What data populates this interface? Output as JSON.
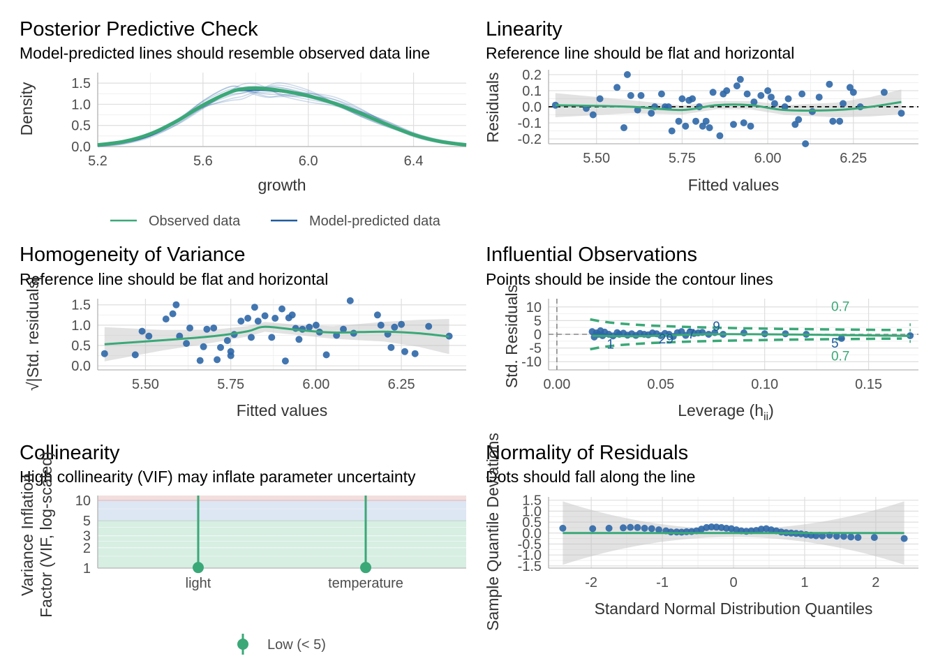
{
  "colors": {
    "observed": "#3aa877",
    "predicted": "#1f5b9e",
    "point": "#2e67a7",
    "ribbon": "#bebebe",
    "contour": "#3aa877",
    "vif_low": "#3aa877"
  },
  "panels": {
    "ppc": {
      "title": "Posterior Predictive Check",
      "subtitle": "Model-predicted lines should resemble observed data line",
      "xlabel": "growth",
      "ylabel": "Density",
      "legend": [
        "Observed data",
        "Model-predicted data"
      ]
    },
    "linearity": {
      "title": "Linearity",
      "subtitle": "Reference line should be flat and horizontal",
      "xlabel": "Fitted values",
      "ylabel": "Residuals"
    },
    "homogeneity": {
      "title": "Homogeneity of Variance",
      "subtitle": "Reference line should be flat and horizontal",
      "xlabel": "Fitted values",
      "ylabel": "√|Std. residuals|"
    },
    "influential": {
      "title": "Influential Observations",
      "subtitle": "Points should be inside the contour lines",
      "xlabel": "Leverage (h",
      "xlabel_sub": "ii",
      "xlabel_end": ")",
      "ylabel": "Std. Residuals",
      "contour_label": "0.7"
    },
    "collinearity": {
      "title": "Collinearity",
      "subtitle": "High collinearity (VIF) may inflate parameter uncertainty",
      "ylabel1": "Variance Inflation",
      "ylabel2": "Factor (VIF, log-scaled)",
      "legend": [
        "Low (< 5)"
      ]
    },
    "normality": {
      "title": "Normality of Residuals",
      "subtitle": "Dots should fall along the line",
      "xlabel": "Standard Normal Distribution Quantiles",
      "ylabel": "Sample Quantile Deviations"
    }
  },
  "chart_data": [
    {
      "id": "ppc",
      "type": "line",
      "x_ticks": [
        5.2,
        5.6,
        6.0,
        6.4
      ],
      "y_ticks": [
        0.0,
        0.5,
        1.0,
        1.5
      ],
      "xlim": [
        5.2,
        6.6
      ],
      "ylim": [
        0.0,
        1.75
      ],
      "x": [
        5.2,
        5.3,
        5.4,
        5.5,
        5.6,
        5.7,
        5.75,
        5.8,
        5.85,
        5.9,
        6.0,
        6.1,
        6.2,
        6.3,
        6.4,
        6.5,
        6.6
      ],
      "series": [
        {
          "name": "Observed data",
          "values": [
            0.04,
            0.12,
            0.3,
            0.6,
            0.98,
            1.28,
            1.36,
            1.38,
            1.36,
            1.32,
            1.2,
            1.02,
            0.78,
            0.52,
            0.28,
            0.12,
            0.04
          ]
        },
        {
          "name": "Model-predicted data",
          "values": [
            0.03,
            0.1,
            0.27,
            0.58,
            0.97,
            1.27,
            1.33,
            1.34,
            1.33,
            1.3,
            1.2,
            1.04,
            0.8,
            0.53,
            0.28,
            0.12,
            0.03
          ]
        }
      ]
    },
    {
      "id": "linearity",
      "type": "scatter",
      "x_ticks": [
        5.5,
        5.75,
        6.0,
        6.25
      ],
      "y_ticks": [
        -0.2,
        -0.1,
        0.0,
        0.1,
        0.2
      ],
      "xlim": [
        5.36,
        6.44
      ],
      "ylim": [
        -0.23,
        0.23
      ],
      "x": [
        5.38,
        5.47,
        5.49,
        5.51,
        5.56,
        5.58,
        5.59,
        5.6,
        5.62,
        5.63,
        5.66,
        5.67,
        5.69,
        5.7,
        5.71,
        5.72,
        5.74,
        5.75,
        5.76,
        5.77,
        5.78,
        5.79,
        5.8,
        5.81,
        5.82,
        5.83,
        5.84,
        5.86,
        5.87,
        5.88,
        5.9,
        5.91,
        5.92,
        5.93,
        5.94,
        5.95,
        5.96,
        5.98,
        6.0,
        6.01,
        6.02,
        6.05,
        6.06,
        6.08,
        6.09,
        6.1,
        6.11,
        6.13,
        6.15,
        6.18,
        6.19,
        6.21,
        6.22,
        6.24,
        6.25,
        6.27,
        6.34,
        6.39
      ],
      "y": [
        0.01,
        -0.01,
        -0.05,
        0.05,
        0.12,
        -0.13,
        0.2,
        0.07,
        -0.02,
        0.07,
        -0.04,
        0.0,
        0.08,
        0.0,
        0.0,
        -0.15,
        -0.09,
        0.05,
        -0.12,
        0.04,
        0.05,
        -0.09,
        0.0,
        -0.12,
        -0.09,
        -0.13,
        0.09,
        -0.18,
        0.08,
        0.1,
        -0.11,
        0.13,
        0.17,
        -0.1,
        0.08,
        -0.12,
        0.03,
        0.07,
        0.1,
        0.06,
        0.02,
        0.0,
        0.05,
        -0.11,
        -0.08,
        0.08,
        -0.23,
        -0.03,
        0.06,
        0.14,
        -0.09,
        -0.09,
        0.02,
        0.12,
        0.09,
        0.0,
        0.09,
        -0.04
      ],
      "smooth_x": [
        5.38,
        5.6,
        5.75,
        5.85,
        5.95,
        6.05,
        6.2,
        6.3,
        6.39
      ],
      "smooth_y": [
        0.01,
        0.0,
        -0.02,
        0.01,
        0.01,
        -0.02,
        -0.02,
        0.0,
        0.03
      ],
      "reference_y": 0.0
    },
    {
      "id": "homogeneity",
      "type": "scatter",
      "x_ticks": [
        5.5,
        5.75,
        6.0,
        6.25
      ],
      "y_ticks": [
        0.0,
        0.5,
        1.0,
        1.5
      ],
      "xlim": [
        5.36,
        6.44
      ],
      "ylim": [
        -0.1,
        1.65
      ],
      "x": [
        5.38,
        5.47,
        5.49,
        5.51,
        5.56,
        5.58,
        5.59,
        5.6,
        5.62,
        5.63,
        5.66,
        5.67,
        5.68,
        5.7,
        5.71,
        5.72,
        5.74,
        5.75,
        5.75,
        5.76,
        5.78,
        5.8,
        5.81,
        5.82,
        5.83,
        5.85,
        5.87,
        5.88,
        5.9,
        5.91,
        5.92,
        5.93,
        5.94,
        5.95,
        5.96,
        5.98,
        6.0,
        6.01,
        6.03,
        6.06,
        6.08,
        6.1,
        6.11,
        6.18,
        6.19,
        6.21,
        6.22,
        6.23,
        6.25,
        6.26,
        6.29,
        6.33,
        6.39
      ],
      "y": [
        0.3,
        0.27,
        0.85,
        0.73,
        1.15,
        1.28,
        1.5,
        0.73,
        0.55,
        0.93,
        0.13,
        0.47,
        0.9,
        0.93,
        0.15,
        0.45,
        0.62,
        0.35,
        0.25,
        0.77,
        1.1,
        1.17,
        0.7,
        1.44,
        1.1,
        1.23,
        0.7,
        1.17,
        1.4,
        0.12,
        1.18,
        1.25,
        0.92,
        0.65,
        0.9,
        0.95,
        1.0,
        0.83,
        0.27,
        0.75,
        0.9,
        1.6,
        0.8,
        1.25,
        1.0,
        0.78,
        0.45,
        0.95,
        1.02,
        0.35,
        0.3,
        0.97,
        0.73
      ],
      "smooth_x": [
        5.38,
        5.55,
        5.7,
        5.8,
        5.85,
        5.95,
        6.05,
        6.2,
        6.3,
        6.39
      ],
      "smooth_y": [
        0.53,
        0.63,
        0.73,
        0.85,
        0.96,
        0.88,
        0.82,
        0.84,
        0.8,
        0.72
      ]
    },
    {
      "id": "influential",
      "type": "scatter",
      "x_ticks": [
        0.0,
        0.05,
        0.1,
        0.15
      ],
      "y_ticks": [
        -10,
        -5,
        0,
        5,
        10
      ],
      "xlim": [
        -0.004,
        0.174
      ],
      "ylim": [
        -13,
        13
      ],
      "x": [
        0.017,
        0.018,
        0.019,
        0.02,
        0.021,
        0.022,
        0.023,
        0.025,
        0.027,
        0.029,
        0.03,
        0.032,
        0.034,
        0.036,
        0.038,
        0.04,
        0.042,
        0.044,
        0.046,
        0.048,
        0.05,
        0.052,
        0.054,
        0.056,
        0.058,
        0.06,
        0.062,
        0.064,
        0.066,
        0.068,
        0.07,
        0.073,
        0.076,
        0.08,
        0.09,
        0.1,
        0.11,
        0.12,
        0.137,
        0.17
      ],
      "y": [
        1.0,
        -1.0,
        0.5,
        0.0,
        1.3,
        -0.5,
        0.8,
        0.0,
        -0.6,
        0.6,
        0.0,
        0.4,
        -0.3,
        0.2,
        -0.4,
        0.3,
        0.0,
        -0.2,
        0.5,
        0.2,
        -0.5,
        0.3,
        0.0,
        -0.8,
        0.6,
        1.0,
        -0.4,
        0.9,
        0.3,
        0.5,
        0.7,
        0.0,
        0.6,
        0.0,
        0.5,
        0.2,
        0.2,
        0.0,
        -1.5,
        -0.5
      ],
      "point_labels": [
        {
          "text": "1",
          "x": 0.024,
          "y": -3.5
        },
        {
          "text": "29",
          "x": 0.049,
          "y": -1.5
        },
        {
          "text": "7",
          "x": 0.063,
          "y": 0.3
        },
        {
          "text": "9",
          "x": 0.075,
          "y": 3.0
        },
        {
          "text": "5",
          "x": 0.132,
          "y": -3.0
        }
      ],
      "smooth_x": [
        0.017,
        0.04,
        0.07,
        0.1,
        0.14,
        0.17
      ],
      "smooth_y": [
        -0.5,
        -0.7,
        0.0,
        0.0,
        -0.3,
        -0.6
      ],
      "contour_label": "0.7"
    },
    {
      "id": "collinearity",
      "type": "scatter",
      "categories": [
        "light",
        "temperature"
      ],
      "y_ticks": [
        1,
        2,
        3,
        5,
        10
      ],
      "ylim": [
        1,
        11.8
      ],
      "series": [
        {
          "name": "Low (< 5)",
          "values": [
            1.02,
            1.02
          ]
        }
      ],
      "zones": [
        {
          "from": 1,
          "to": 5,
          "color": "#d7eee3"
        },
        {
          "from": 5,
          "to": 10,
          "color": "#dde6f3"
        },
        {
          "from": 10,
          "to": 11.8,
          "color": "#f3dede"
        }
      ]
    },
    {
      "id": "normality",
      "type": "scatter",
      "x_ticks": [
        -2,
        -1,
        0,
        1,
        2
      ],
      "y_ticks": [
        -1.5,
        -1.0,
        -0.5,
        0.0,
        0.5,
        1.0,
        1.5
      ],
      "xlim": [
        -2.6,
        2.6
      ],
      "ylim": [
        -1.6,
        1.65
      ],
      "x": [
        -2.4,
        -1.98,
        -1.75,
        -1.55,
        -1.45,
        -1.35,
        -1.25,
        -1.15,
        -1.05,
        -0.95,
        -0.88,
        -0.8,
        -0.73,
        -0.66,
        -0.59,
        -0.52,
        -0.45,
        -0.38,
        -0.31,
        -0.24,
        -0.17,
        -0.1,
        -0.03,
        0.04,
        0.11,
        0.18,
        0.25,
        0.32,
        0.39,
        0.46,
        0.53,
        0.6,
        0.67,
        0.74,
        0.81,
        0.88,
        0.95,
        1.02,
        1.09,
        1.16,
        1.25,
        1.35,
        1.45,
        1.55,
        1.65,
        1.75,
        1.98,
        2.4
      ],
      "y": [
        0.22,
        0.2,
        0.22,
        0.24,
        0.26,
        0.25,
        0.22,
        0.2,
        0.15,
        0.1,
        0.05,
        0.05,
        0.04,
        0.06,
        0.07,
        0.1,
        0.18,
        0.25,
        0.28,
        0.27,
        0.25,
        0.22,
        0.2,
        0.15,
        0.1,
        0.08,
        0.1,
        0.12,
        0.18,
        0.2,
        0.15,
        0.1,
        0.05,
        0.02,
        0.0,
        -0.02,
        -0.04,
        -0.07,
        -0.1,
        -0.12,
        -0.13,
        -0.1,
        -0.14,
        -0.15,
        -0.18,
        -0.2,
        -0.2,
        -0.25
      ],
      "reference_y": 0.0
    }
  ]
}
